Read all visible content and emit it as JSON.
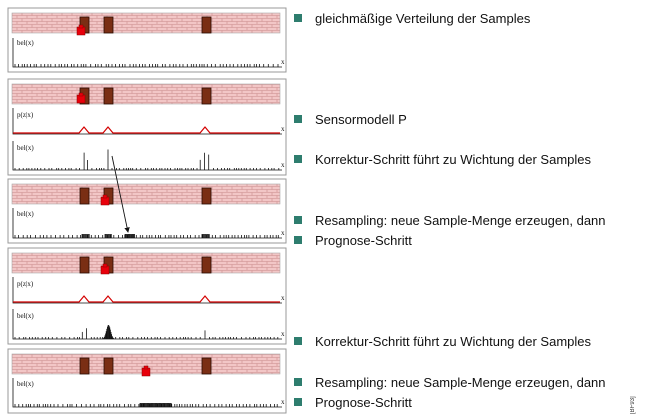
{
  "bullets": [
    "gleichmäßige Verteilung der Samples",
    "Sensormodell P",
    "Korrektur-Schritt führt zu Wichtung der Samples",
    "Resampling: neue Sample-Menge erzeugen, dann",
    "Prognose-Schritt",
    "Korrektur-Schritt führt zu Wichtung der Samples",
    "Resampling: neue Sample-Menge erzeugen, dann",
    "Prognose-Schritt"
  ],
  "labels": {
    "bel": "bel(x)",
    "pzx": "p(z|x)",
    "x": "x"
  },
  "source_mark": "[BF93]",
  "colors": {
    "bullet": "#2e7d6e",
    "wall": "#f2c6c6",
    "brick_line": "#c98a8a",
    "door": "#7a2e14",
    "robot": "#e8000b",
    "sensor_curve": "#d40000"
  }
}
